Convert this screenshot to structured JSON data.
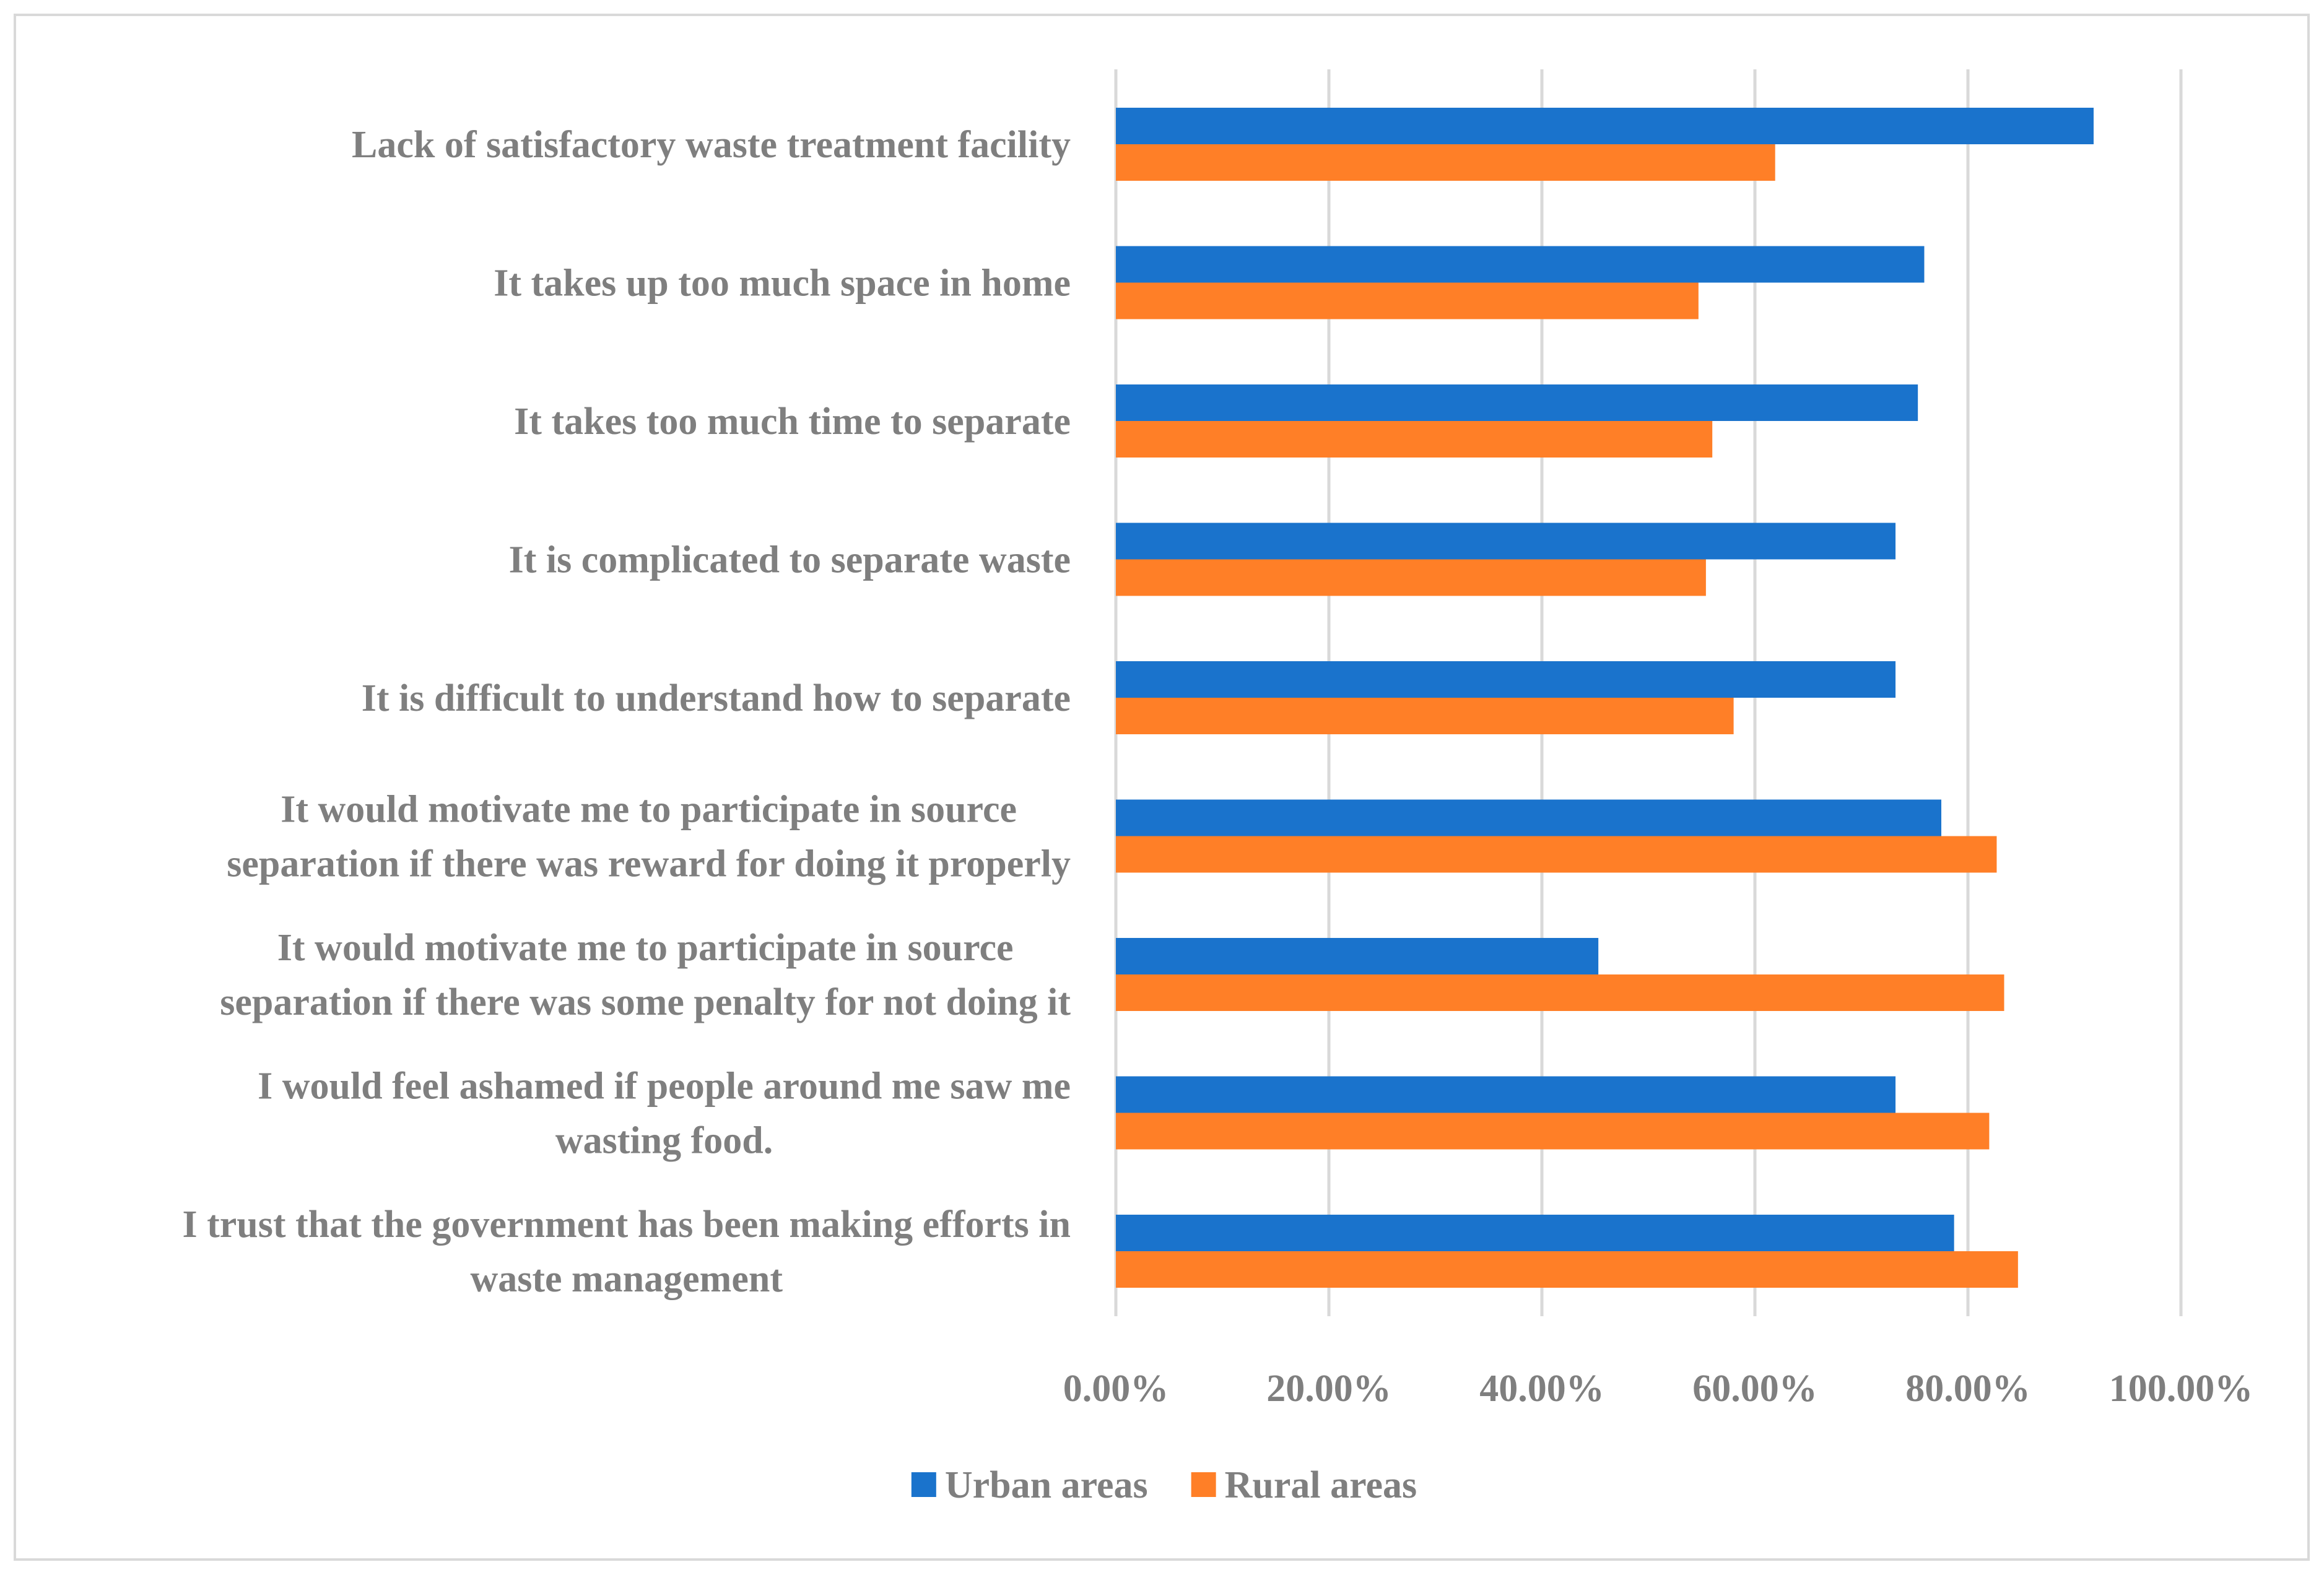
{
  "chart_data": {
    "type": "bar",
    "orientation": "horizontal",
    "title": "",
    "xlabel": "",
    "ylabel": "",
    "xlim": [
      0,
      100
    ],
    "x_ticks": [
      "0.00%",
      "20.00%",
      "40.00%",
      "60.00%",
      "80.00%",
      "100.00%"
    ],
    "grid": true,
    "legend_position": "bottom",
    "categories": [
      [
        "Lack of satisfactory waste treatment facility"
      ],
      [
        "It takes up too much space in home"
      ],
      [
        "It takes too much time to separate"
      ],
      [
        "It is complicated to separate waste"
      ],
      [
        "It is difficult to understand how to separate"
      ],
      [
        "It would motivate me to participate in source",
        "separation if there was reward for doing it properly"
      ],
      [
        "It would motivate me to participate in source",
        "separation if there was some penalty for not doing it"
      ],
      [
        "I would feel ashamed if people around me saw me",
        "wasting food."
      ],
      [
        "I trust that the government has been making efforts in",
        "waste management"
      ]
    ],
    "series": [
      {
        "name": "Urban areas",
        "color": "#1a73cc",
        "values": [
          91.8,
          75.9,
          75.3,
          73.2,
          73.2,
          77.5,
          45.3,
          73.2,
          78.7
        ]
      },
      {
        "name": "Rural areas",
        "color": "#ff7f27",
        "values": [
          61.9,
          54.7,
          56.0,
          55.4,
          58.0,
          82.7,
          83.4,
          82.0,
          84.7
        ]
      }
    ]
  }
}
